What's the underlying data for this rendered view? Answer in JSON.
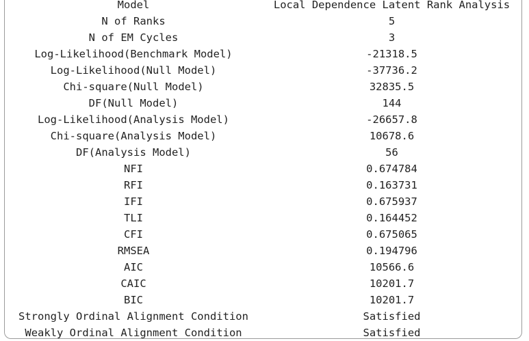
{
  "table": {
    "headers": [
      "Model",
      "Local Dependence Latent Rank Analysis"
    ],
    "rows": [
      [
        "N of Ranks",
        "5"
      ],
      [
        "N of EM Cycles",
        "3"
      ],
      [
        "Log-Likelihood(Benchmark Model)",
        "-21318.5"
      ],
      [
        "Log-Likelihood(Null Model)",
        "-37736.2"
      ],
      [
        "Chi-square(Null Model)",
        "32835.5"
      ],
      [
        "DF(Null Model)",
        "144"
      ],
      [
        "Log-Likelihood(Analysis Model)",
        "-26657.8"
      ],
      [
        "Chi-square(Analysis Model)",
        "10678.6"
      ],
      [
        "DF(Analysis Model)",
        "56"
      ],
      [
        "NFI",
        "0.674784"
      ],
      [
        "RFI",
        "0.163731"
      ],
      [
        "IFI",
        "0.675937"
      ],
      [
        "TLI",
        "0.164452"
      ],
      [
        "CFI",
        "0.675065"
      ],
      [
        "RMSEA",
        "0.194796"
      ],
      [
        "AIC",
        "10566.6"
      ],
      [
        "CAIC",
        "10201.7"
      ],
      [
        "BIC",
        "10201.7"
      ],
      [
        "Strongly Ordinal Alignment Condition",
        "Satisfied"
      ],
      [
        "Weakly Ordinal Alignment Condition",
        "Satisfied"
      ]
    ]
  }
}
